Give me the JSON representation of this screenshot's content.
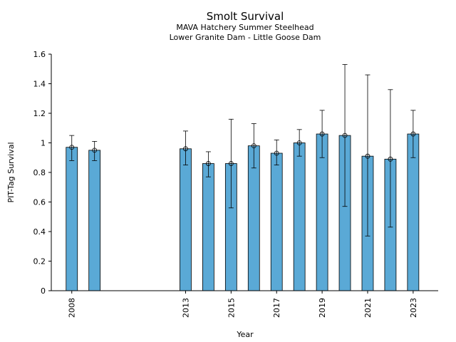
{
  "chart_data": {
    "type": "bar",
    "title": "Smolt Survival",
    "subtitle_lines": [
      "MAVA Hatchery Summer Steelhead",
      "Lower Granite Dam - Little Goose Dam"
    ],
    "xlabel": "Year",
    "ylabel": "PIT-Tag Survival",
    "ylim": [
      0,
      1.6
    ],
    "yticks": [
      0,
      0.2,
      0.4,
      0.6,
      0.8,
      1,
      1.2,
      1.4,
      1.6
    ],
    "ytick_labels": [
      "0",
      "0.2",
      "0.4",
      "0.6",
      "0.8",
      "1",
      "1.2",
      "1.4",
      "1.6"
    ],
    "xlim": [
      2007.1,
      2024.1
    ],
    "xticks": [
      2008,
      2013,
      2015,
      2017,
      2019,
      2021,
      2023
    ],
    "xtick_labels": [
      "2008",
      "2013",
      "2015",
      "2017",
      "2019",
      "2021",
      "2023"
    ],
    "grid": false,
    "bar_color": "#5aa9d6",
    "points": [
      {
        "year": 2008,
        "value": 0.97,
        "lower": 0.88,
        "upper": 1.05
      },
      {
        "year": 2009,
        "value": 0.95,
        "lower": 0.88,
        "upper": 1.01
      },
      {
        "year": 2013,
        "value": 0.96,
        "lower": 0.85,
        "upper": 1.08
      },
      {
        "year": 2014,
        "value": 0.86,
        "lower": 0.77,
        "upper": 0.94
      },
      {
        "year": 2015,
        "value": 0.86,
        "lower": 0.56,
        "upper": 1.16
      },
      {
        "year": 2016,
        "value": 0.98,
        "lower": 0.83,
        "upper": 1.13
      },
      {
        "year": 2017,
        "value": 0.93,
        "lower": 0.85,
        "upper": 1.02
      },
      {
        "year": 2018,
        "value": 1.0,
        "lower": 0.91,
        "upper": 1.09
      },
      {
        "year": 2019,
        "value": 1.06,
        "lower": 0.9,
        "upper": 1.22
      },
      {
        "year": 2020,
        "value": 1.05,
        "lower": 0.57,
        "upper": 1.53
      },
      {
        "year": 2021,
        "value": 0.91,
        "lower": 0.37,
        "upper": 1.46
      },
      {
        "year": 2022,
        "value": 0.89,
        "lower": 0.43,
        "upper": 1.36
      },
      {
        "year": 2023,
        "value": 1.06,
        "lower": 0.9,
        "upper": 1.22
      }
    ]
  }
}
